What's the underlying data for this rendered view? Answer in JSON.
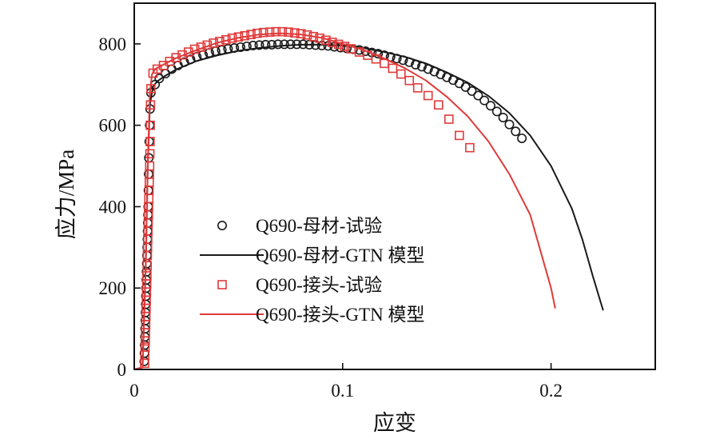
{
  "chart_data": {
    "type": "line",
    "xlabel": "应变",
    "ylabel": "应力/MPa",
    "xlim": [
      0,
      0.25
    ],
    "ylim": [
      0,
      900
    ],
    "x_ticks": [
      0,
      0.1,
      0.2
    ],
    "x_tick_labels": [
      "0",
      "0.1",
      "0.2"
    ],
    "y_ticks": [
      0,
      200,
      400,
      600,
      800
    ],
    "y_tick_labels": [
      "0",
      "200",
      "400",
      "600",
      "800"
    ],
    "grid": false,
    "legend_position": "center-left",
    "series": [
      {
        "name": "Q690-母材-试验",
        "kind": "scatter",
        "marker": "circle",
        "color": "#1a1a1a",
        "x": [
          0.0048,
          0.0049,
          0.005,
          0.0051,
          0.0052,
          0.0053,
          0.0054,
          0.0055,
          0.0056,
          0.0057,
          0.0058,
          0.0059,
          0.006,
          0.0061,
          0.0062,
          0.0063,
          0.0064,
          0.0065,
          0.0066,
          0.0067,
          0.0068,
          0.0069,
          0.007,
          0.0072,
          0.0074,
          0.0076,
          0.008,
          0.01,
          0.012,
          0.015,
          0.018,
          0.021,
          0.024,
          0.027,
          0.03,
          0.033,
          0.036,
          0.039,
          0.042,
          0.045,
          0.048,
          0.051,
          0.054,
          0.057,
          0.06,
          0.063,
          0.066,
          0.069,
          0.072,
          0.075,
          0.078,
          0.081,
          0.084,
          0.087,
          0.09,
          0.093,
          0.096,
          0.099,
          0.102,
          0.105,
          0.108,
          0.111,
          0.114,
          0.117,
          0.12,
          0.123,
          0.126,
          0.129,
          0.132,
          0.135,
          0.138,
          0.141,
          0.144,
          0.147,
          0.15,
          0.153,
          0.156,
          0.159,
          0.162,
          0.165,
          0.168,
          0.171,
          0.174,
          0.177,
          0.18,
          0.183,
          0.186
        ],
        "y": [
          20,
          40,
          60,
          80,
          100,
          120,
          140,
          160,
          180,
          200,
          220,
          240,
          260,
          280,
          300,
          320,
          340,
          360,
          380,
          400,
          440,
          480,
          520,
          560,
          600,
          640,
          680,
          700,
          715,
          727,
          738,
          747,
          755,
          762,
          768,
          773,
          778,
          782,
          785,
          788,
          790,
          792,
          794,
          796,
          797,
          798,
          798,
          799,
          799,
          799,
          799,
          799,
          798,
          797,
          796,
          795,
          793,
          791,
          789,
          787,
          785,
          782,
          779,
          776,
          772,
          768,
          764,
          760,
          755,
          749,
          744,
          738,
          732,
          725,
          718,
          711,
          703,
          694,
          684,
          673,
          661,
          648,
          634,
          619,
          602,
          585,
          568
        ]
      },
      {
        "name": "Q690-母材-GTN 模型",
        "kind": "line",
        "color": "#1a1a1a",
        "x": [
          0,
          0.004,
          0.0055,
          0.0065,
          0.0075,
          0.009,
          0.011,
          0.015,
          0.02,
          0.03,
          0.04,
          0.05,
          0.06,
          0.07,
          0.08,
          0.09,
          0.1,
          0.11,
          0.12,
          0.13,
          0.14,
          0.15,
          0.16,
          0.17,
          0.18,
          0.19,
          0.2,
          0.21,
          0.215,
          0.22,
          0.225
        ],
        "y": [
          0,
          5,
          250,
          500,
          650,
          695,
          708,
          722,
          737,
          758,
          772,
          783,
          790,
          795,
          798,
          798,
          796,
          790,
          780,
          768,
          752,
          730,
          705,
          672,
          630,
          575,
          500,
          395,
          320,
          230,
          145
        ]
      },
      {
        "name": "Q690-接头-试验",
        "kind": "scatter",
        "marker": "square",
        "color": "#e03a3a",
        "x": [
          0.005,
          0.0051,
          0.0052,
          0.0053,
          0.0054,
          0.0055,
          0.0056,
          0.0057,
          0.0058,
          0.0059,
          0.006,
          0.0061,
          0.0062,
          0.0063,
          0.0064,
          0.0065,
          0.0066,
          0.0067,
          0.0068,
          0.0069,
          0.007,
          0.0071,
          0.0072,
          0.0073,
          0.0074,
          0.0075,
          0.0076,
          0.0077,
          0.0078,
          0.008,
          0.009,
          0.011,
          0.014,
          0.017,
          0.02,
          0.023,
          0.026,
          0.029,
          0.032,
          0.035,
          0.038,
          0.041,
          0.044,
          0.047,
          0.05,
          0.053,
          0.056,
          0.059,
          0.062,
          0.065,
          0.068,
          0.071,
          0.074,
          0.077,
          0.08,
          0.083,
          0.086,
          0.089,
          0.092,
          0.095,
          0.098,
          0.101,
          0.104,
          0.108,
          0.112,
          0.116,
          0.12,
          0.124,
          0.128,
          0.132,
          0.136,
          0.141,
          0.146,
          0.151,
          0.156,
          0.161
        ],
        "y": [
          15,
          35,
          55,
          70,
          90,
          110,
          130,
          150,
          170,
          190,
          210,
          230,
          255,
          280,
          300,
          320,
          340,
          360,
          380,
          400,
          420,
          440,
          460,
          480,
          500,
          530,
          560,
          600,
          650,
          690,
          728,
          738,
          747,
          757,
          766,
          773,
          780,
          787,
          792,
          797,
          802,
          806,
          810,
          814,
          817,
          820,
          823,
          826,
          828,
          829,
          830,
          830,
          829,
          827,
          825,
          822,
          818,
          814,
          809,
          804,
          799,
          794,
          788,
          780,
          772,
          763,
          752,
          740,
          726,
          710,
          692,
          673,
          650,
          615,
          575,
          545
        ]
      },
      {
        "name": "Q690-接头-GTN 模型",
        "kind": "line",
        "color": "#e03a3a",
        "x": [
          0,
          0.004,
          0.0055,
          0.0065,
          0.0075,
          0.0085,
          0.01,
          0.015,
          0.02,
          0.03,
          0.04,
          0.05,
          0.06,
          0.07,
          0.08,
          0.09,
          0.1,
          0.11,
          0.12,
          0.13,
          0.14,
          0.15,
          0.16,
          0.17,
          0.18,
          0.19,
          0.195,
          0.2,
          0.202
        ],
        "y": [
          0,
          5,
          250,
          500,
          680,
          725,
          738,
          752,
          765,
          785,
          803,
          815,
          823,
          826,
          823,
          815,
          800,
          785,
          764,
          740,
          710,
          670,
          622,
          560,
          480,
          380,
          290,
          200,
          150
        ]
      }
    ]
  }
}
